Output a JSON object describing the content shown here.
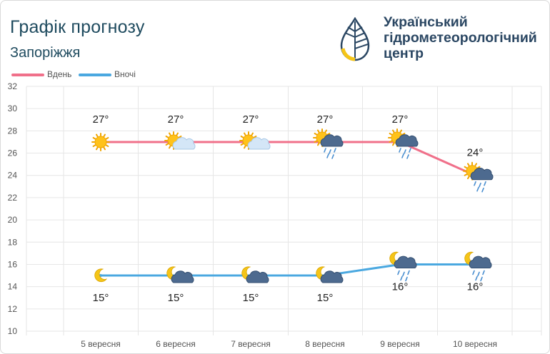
{
  "header": {
    "title": "Графік прогнозу",
    "city": "Запоріжжя",
    "org_lines": [
      "Український",
      "гідрометеорологічний",
      "центр"
    ]
  },
  "colors": {
    "day": "#f0708a",
    "night": "#4aa8e0",
    "title": "#1f4b5f",
    "org": "#2b4763",
    "logo": "#2b4763",
    "logo_accent": "#f5c518"
  },
  "chart_data": {
    "type": "line",
    "categories": [
      "5 вересня",
      "6 вересня",
      "7 вересня",
      "8 вересня",
      "9 вересня",
      "10 вересня"
    ],
    "series": [
      {
        "name": "Вдень",
        "values": [
          27,
          27,
          27,
          27,
          27,
          24
        ],
        "labels": [
          "27°",
          "27°",
          "27°",
          "27°",
          "27°",
          "24°"
        ],
        "icons": [
          "sun-icon",
          "sun-cloud-icon",
          "sun-cloud-icon",
          "sun-rain-icon",
          "sun-rain-icon",
          "sun-rain-icon"
        ]
      },
      {
        "name": "Вночі",
        "values": [
          15,
          15,
          15,
          15,
          16,
          16
        ],
        "labels": [
          "15°",
          "15°",
          "15°",
          "15°",
          "16°",
          "16°"
        ],
        "icons": [
          "moon-icon",
          "moon-cloud-icon",
          "moon-cloud-icon",
          "moon-cloud-icon",
          "moon-rain-icon",
          "moon-rain-icon"
        ]
      }
    ],
    "yticks": [
      "10",
      "12",
      "14",
      "16",
      "18",
      "20",
      "22",
      "24",
      "26",
      "28",
      "30",
      "32"
    ],
    "ylim": [
      10,
      32
    ],
    "grid": true,
    "legend": "top-left"
  }
}
